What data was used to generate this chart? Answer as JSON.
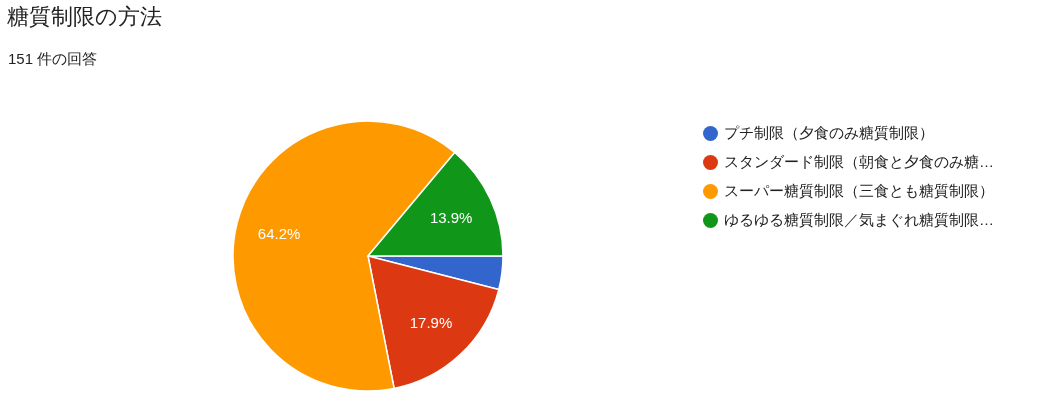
{
  "chart_data": {
    "type": "pie",
    "title": "糖質制限の方法",
    "subtitle": "151 件の回答",
    "categories": [
      "プチ制限（夕食のみ糖質制限）",
      "スタンダード制限（朝食と夕食のみ糖…",
      "スーパー糖質制限（三食とも糖質制限）",
      "ゆるゆる糖質制限／気まぐれ糖質制限…"
    ],
    "values": [
      4.0,
      17.9,
      64.2,
      13.9
    ],
    "value_labels": [
      null,
      "17.9%",
      "64.2%",
      "13.9%"
    ],
    "colors": [
      "#3366cc",
      "#dc3912",
      "#ff9900",
      "#109618"
    ],
    "legend": "right"
  }
}
